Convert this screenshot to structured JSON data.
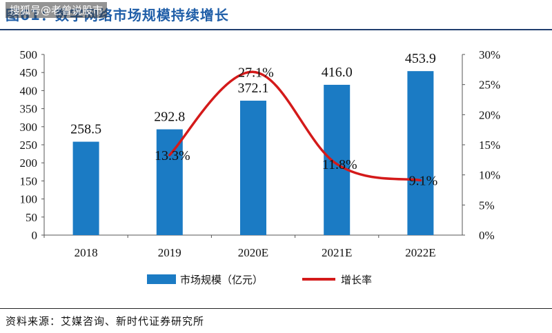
{
  "header": {
    "title": "图61：数字网络市场规模持续增长",
    "watermark": "搜狐号@老曾说股市"
  },
  "source": "资料来源：艾媒咨询、新时代证券研究所",
  "colors": {
    "bar": "#1b7bc4",
    "line": "#d41a1a"
  },
  "chart_data": {
    "type": "bar",
    "categories": [
      "2018",
      "2019",
      "2020E",
      "2021E",
      "2022E"
    ],
    "series": [
      {
        "name": "市场规模（亿元）",
        "type": "bar",
        "axis": "left",
        "values": [
          258.5,
          292.8,
          372.1,
          416.0,
          453.9
        ],
        "labels": [
          "258.5",
          "292.8",
          "372.1",
          "416.0",
          "453.9"
        ]
      },
      {
        "name": "增长率",
        "type": "line",
        "axis": "right",
        "values": [
          null,
          13.3,
          27.1,
          11.8,
          9.1
        ],
        "labels": [
          "",
          "13.3%",
          "27.1%",
          "11.8%",
          "9.1%"
        ]
      }
    ],
    "y_left": {
      "min": 0,
      "max": 500,
      "ticks": [
        "0",
        "50",
        "100",
        "150",
        "200",
        "250",
        "300",
        "350",
        "400",
        "450",
        "500"
      ]
    },
    "y_right": {
      "min": 0,
      "max": 30,
      "ticks": [
        "0%",
        "5%",
        "10%",
        "15%",
        "20%",
        "25%",
        "30%"
      ]
    },
    "legend": "bottom",
    "grid": false
  }
}
